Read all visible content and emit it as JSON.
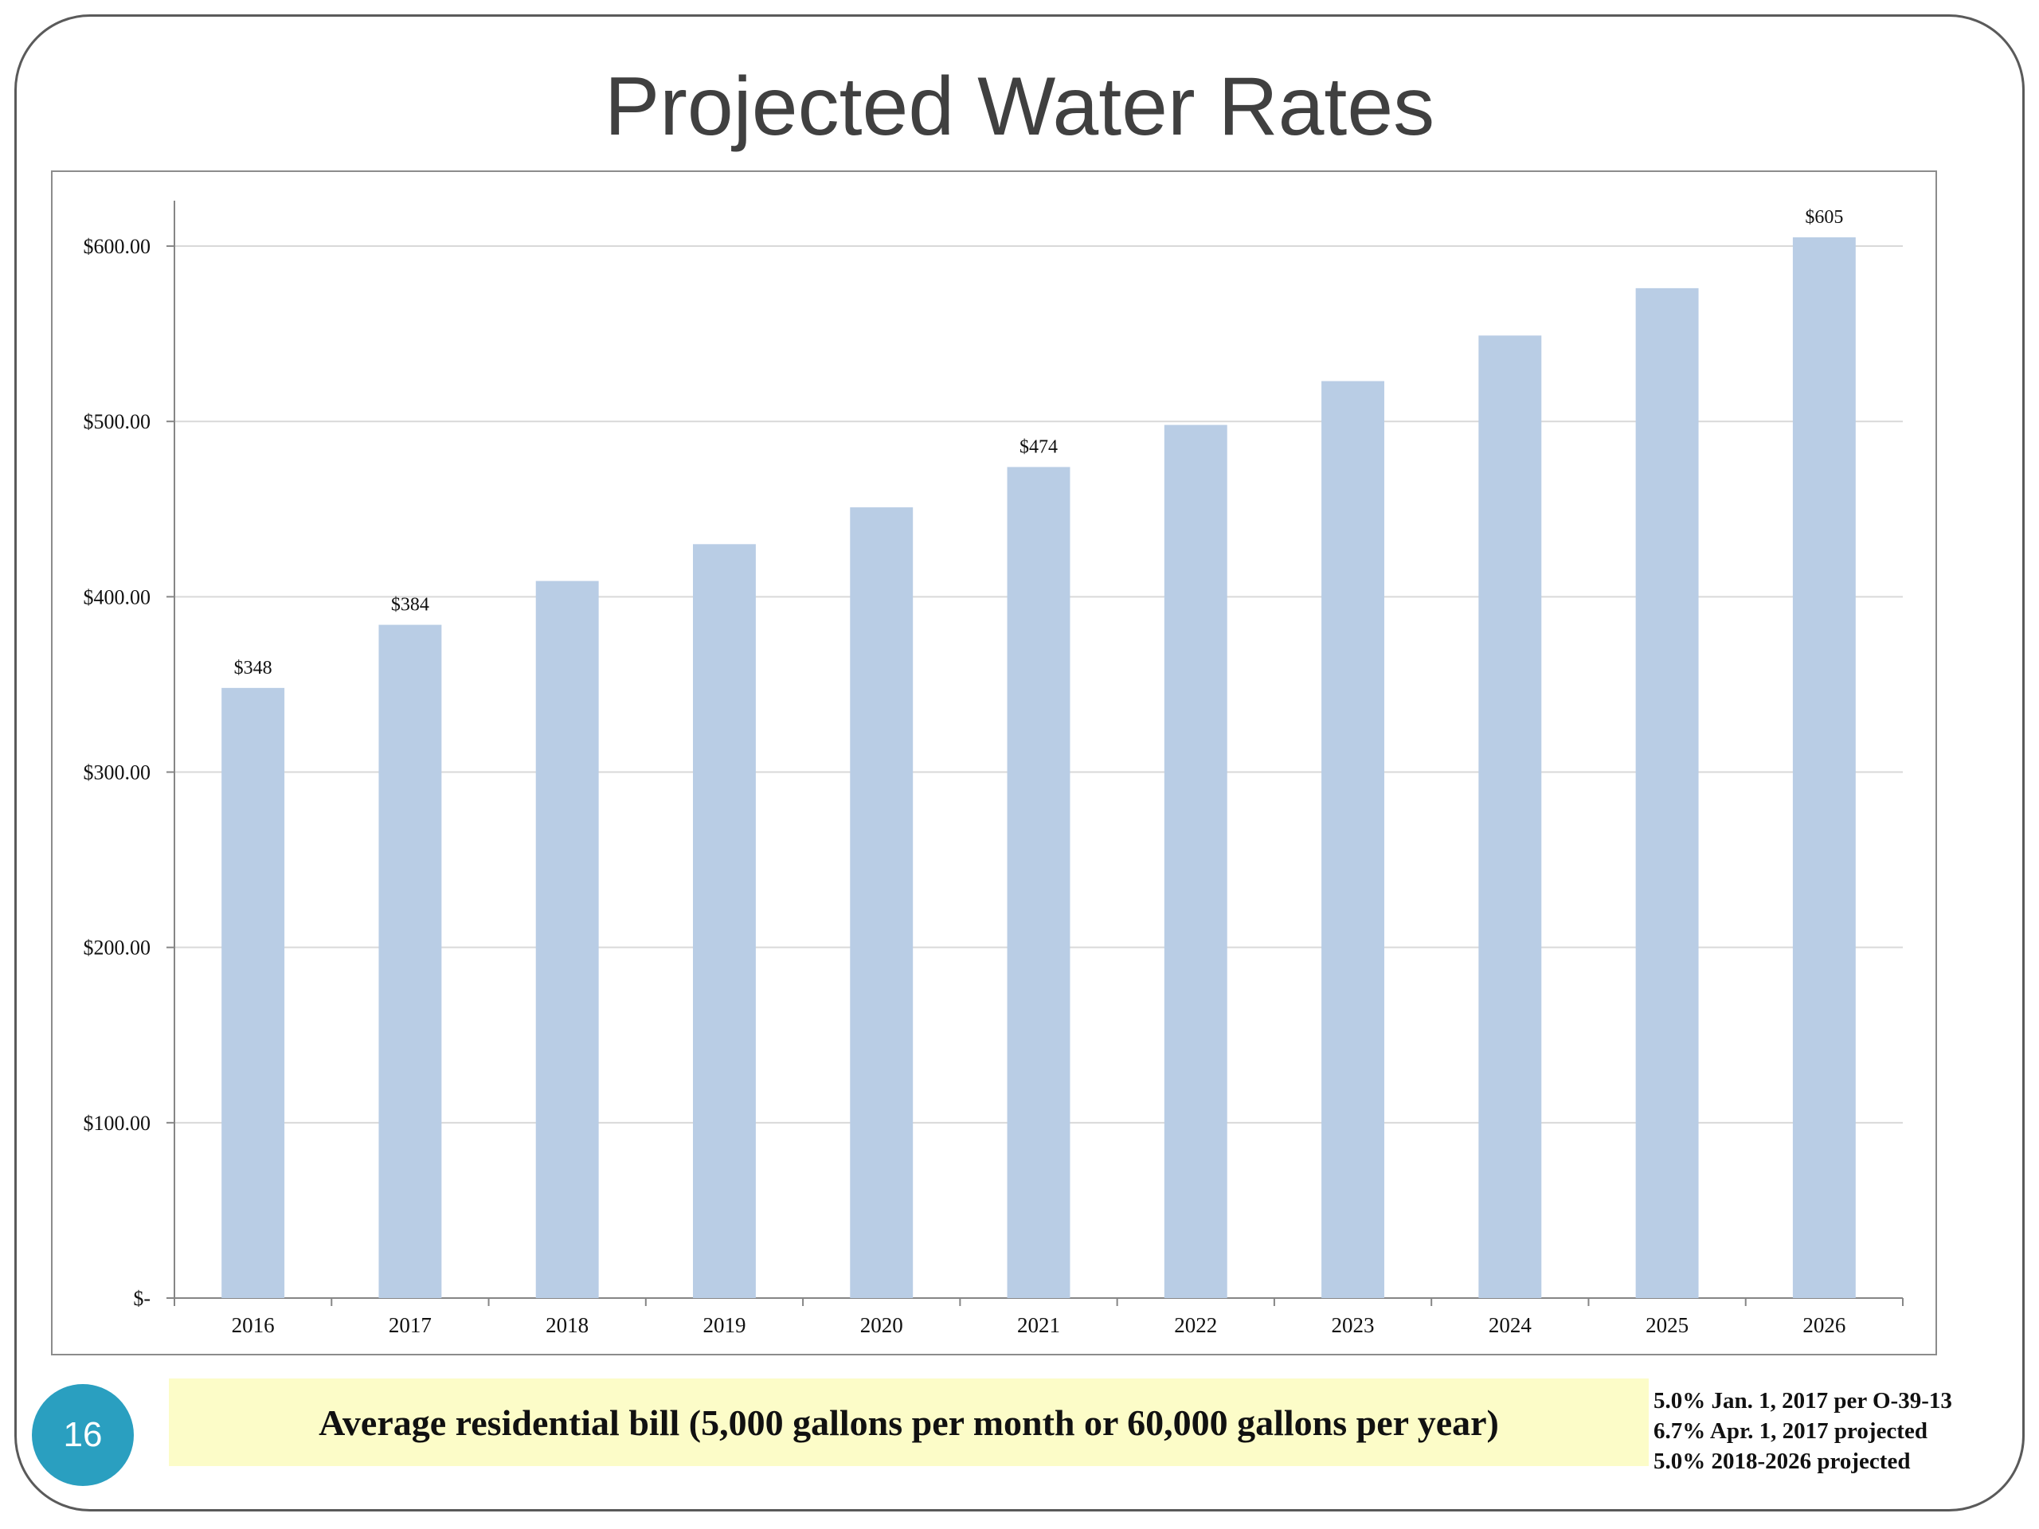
{
  "slide": {
    "title": "Projected Water Rates",
    "caption": "Average residential bill (5,000 gallons per month or 60,000 gallons per year)",
    "page_number": "16",
    "notes": [
      "5.0% Jan. 1, 2017 per O-39-13",
      "6.7% Apr. 1, 2017 projected",
      "5.0% 2018-2026 projected"
    ]
  },
  "colors": {
    "bar": "#b9cde5",
    "grid": "#d9d9d9",
    "axis": "#868686",
    "badge": "#2a9fc0",
    "caption_bg": "#fcfcc8"
  },
  "chart_data": {
    "type": "bar",
    "categories": [
      "2016",
      "2017",
      "2018",
      "2019",
      "2020",
      "2021",
      "2022",
      "2023",
      "2024",
      "2025",
      "2026"
    ],
    "values": [
      348,
      384,
      409,
      430,
      451,
      474,
      498,
      523,
      549,
      576,
      605
    ],
    "data_labels": [
      "$348",
      "$384",
      "",
      "",
      "",
      "$474",
      "",
      "",
      "",
      "",
      "$605"
    ],
    "ylim": [
      0,
      625
    ],
    "yticks": [
      0,
      100,
      200,
      300,
      400,
      500,
      600
    ],
    "ytick_labels": [
      "$-",
      "$100.00",
      "$200.00",
      "$300.00",
      "$400.00",
      "$500.00",
      "$600.00"
    ],
    "grid": true,
    "legend": "none"
  }
}
